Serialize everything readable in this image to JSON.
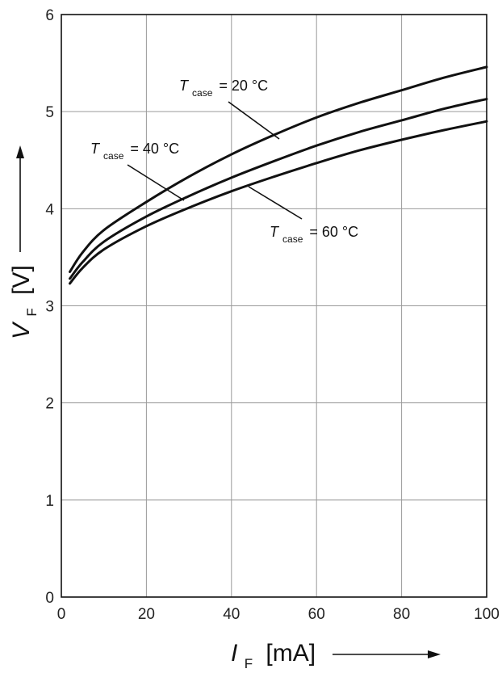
{
  "chart_data": {
    "type": "line",
    "xlabel": {
      "symbol": "I",
      "subscript": "F",
      "unit": "[mA]"
    },
    "ylabel": {
      "symbol": "V",
      "subscript": "F",
      "unit": "[V]"
    },
    "xlim": [
      0,
      100
    ],
    "ylim": [
      0,
      6
    ],
    "xticks": [
      "0",
      "20",
      "40",
      "60",
      "80",
      "100"
    ],
    "yticks": [
      "0",
      "1",
      "2",
      "3",
      "4",
      "5",
      "6"
    ],
    "grid": true,
    "series": [
      {
        "name": "T_case = 20 °C",
        "label": {
          "symbol": "T",
          "subscript": "case",
          "value": "= 20 °C"
        },
        "x": [
          2,
          5,
          10,
          20,
          30,
          40,
          50,
          60,
          70,
          80,
          90,
          100
        ],
        "y": [
          3.35,
          3.55,
          3.78,
          4.07,
          4.33,
          4.56,
          4.76,
          4.94,
          5.09,
          5.22,
          5.35,
          5.46
        ]
      },
      {
        "name": "T_case = 40 °C",
        "label": {
          "symbol": "T",
          "subscript": "case",
          "value": "= 40 °C"
        },
        "x": [
          2,
          5,
          10,
          20,
          30,
          40,
          50,
          60,
          70,
          80,
          90,
          100
        ],
        "y": [
          3.28,
          3.45,
          3.66,
          3.92,
          4.13,
          4.32,
          4.49,
          4.65,
          4.79,
          4.91,
          5.03,
          5.13
        ]
      },
      {
        "name": "T_case = 60 °C",
        "label": {
          "symbol": "T",
          "subscript": "case",
          "value": "= 60 °C"
        },
        "x": [
          2,
          5,
          10,
          20,
          30,
          40,
          50,
          60,
          70,
          80,
          90,
          100
        ],
        "y": [
          3.23,
          3.39,
          3.58,
          3.82,
          4.01,
          4.18,
          4.33,
          4.47,
          4.6,
          4.71,
          4.81,
          4.9
        ]
      }
    ]
  }
}
